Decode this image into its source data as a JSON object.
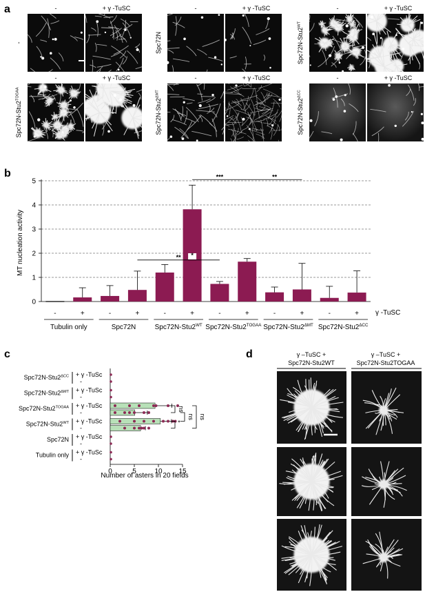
{
  "panel_a": {
    "letter": "a",
    "minus": "-",
    "plus": "+ γ -TuSC",
    "row_labels": [
      "-",
      "Spc72N",
      "Spc72N-Stu2WT",
      "Spc72N-Stu2TOGAA",
      "Spc72N-Stu2ΔMT",
      "Spc72N-Stu2ΔCC"
    ],
    "micrographs": [
      {
        "group": "-",
        "condition": "-",
        "style": "sparse"
      },
      {
        "group": "-",
        "condition": "+",
        "style": "fibers"
      },
      {
        "group": "Spc72N",
        "condition": "-",
        "style": "sparse"
      },
      {
        "group": "Spc72N",
        "condition": "+",
        "style": "sparse"
      },
      {
        "group": "Spc72N-Stu2WT",
        "condition": "-",
        "style": "asters_small"
      },
      {
        "group": "Spc72N-Stu2WT",
        "condition": "+",
        "style": "asters_big"
      },
      {
        "group": "Spc72N-Stu2TOGAA",
        "condition": "-",
        "style": "asters_small"
      },
      {
        "group": "Spc72N-Stu2TOGAA",
        "condition": "+",
        "style": "asters_big"
      },
      {
        "group": "Spc72N-Stu2ΔMT",
        "condition": "-",
        "style": "fibers"
      },
      {
        "group": "Spc72N-Stu2ΔMT",
        "condition": "+",
        "style": "dense"
      },
      {
        "group": "Spc72N-Stu2ΔCC",
        "condition": "-",
        "style": "haze"
      },
      {
        "group": "Spc72N-Stu2ΔCC",
        "condition": "+",
        "style": "haze"
      }
    ]
  },
  "chart_data": [
    {
      "type": "bar",
      "panel": "b",
      "ylabel": "MT nucleation activity",
      "ylim": [
        0,
        5
      ],
      "yticks": [
        "0",
        "1",
        "2",
        "3",
        "4",
        "5"
      ],
      "grid": true,
      "groups": [
        "Tubulin only",
        "Spc72N",
        "Spc72N-Stu2WT",
        "Spc72N-Stu2TOGAA",
        "Spc72N-Stu2ΔMT",
        "Spc72N-Stu2ΔCC"
      ],
      "conditions": [
        "-",
        "+"
      ],
      "condition_label": "γ -TuSC",
      "values": [
        0,
        0.17,
        0.23,
        0.48,
        1.2,
        3.82,
        0.73,
        1.65,
        0.38,
        0.5,
        0.15,
        0.37
      ],
      "errors": [
        0,
        0.4,
        0.43,
        0.78,
        0.33,
        1.0,
        0.1,
        0.13,
        0.22,
        1.08,
        0.48,
        0.9
      ],
      "bar_color": "#8c1b52",
      "significance": [
        {
          "from": 5,
          "to": 7,
          "label": "***"
        },
        {
          "from": 7,
          "to": 9,
          "label": "**"
        },
        {
          "from": 3,
          "to": 6,
          "label": "**"
        },
        {
          "from": 5,
          "to": 5,
          "label": "*"
        }
      ]
    },
    {
      "type": "bar",
      "panel": "c",
      "orientation": "horizontal",
      "xlabel": "Number of asters in 20 fields",
      "xlim": [
        0,
        15
      ],
      "xticks": [
        "0",
        "5",
        "10",
        "15"
      ],
      "groups": [
        "Spc72N-Stu2ΔCC",
        "Spc72N-Stu2ΔMT",
        "Spc72N-Stu2TOGAA",
        "Spc72N-Stu2WT",
        "Spc72N",
        "Tubulin only"
      ],
      "condition_plus": "+ γ -TuSc",
      "condition_minus": "-",
      "values": [
        0,
        0,
        0,
        0,
        9.3,
        5.1,
        10.4,
        6.3,
        0,
        0,
        0,
        0
      ],
      "errors": [
        0,
        0,
        0,
        0,
        3.5,
        2.6,
        2.3,
        1.0,
        0,
        0,
        0,
        0
      ],
      "points": [
        [],
        [],
        [],
        [],
        [
          1,
          4,
          6,
          9,
          12,
          14,
          9.5
        ],
        [
          1,
          3,
          5,
          7,
          8,
          4
        ],
        [
          2,
          5,
          7,
          9,
          11,
          12,
          13,
          13.5
        ],
        [
          3,
          5,
          6,
          7,
          8,
          6.5
        ],
        [],
        [],
        [],
        []
      ],
      "bar_color": "#b8e0b8",
      "point_color": "#8c2a55",
      "significance": [
        {
          "label": "ns"
        },
        {
          "label": "ns"
        },
        {
          "label": "*"
        },
        {
          "label": "ns"
        }
      ]
    }
  ],
  "panel_b": {
    "letter": "b",
    "condition_label": "γ -TuSC"
  },
  "panel_c": {
    "letter": "c"
  },
  "panel_d": {
    "letter": "d",
    "col_titles": [
      {
        "line1": "γ –TuSC +",
        "line2": "Spc72N-Stu2WT"
      },
      {
        "line1": "γ –TuSC +",
        "line2": "Spc72N-Stu2TOGAA"
      }
    ]
  }
}
